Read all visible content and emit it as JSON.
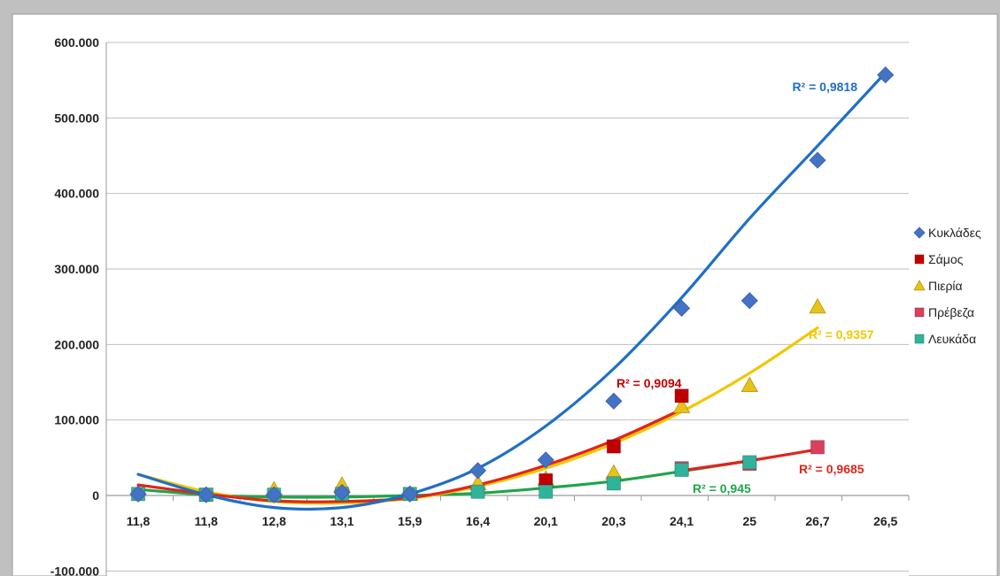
{
  "chart_data": {
    "type": "scatter",
    "categories": [
      "11,8",
      "11,8",
      "12,8",
      "13,1",
      "15,9",
      "16,4",
      "20,1",
      "20,3",
      "24,1",
      "25",
      "26,7",
      "26,5"
    ],
    "y_ticks": [
      "600.000",
      "500.000",
      "400.000",
      "300.000",
      "200.000",
      "100.000",
      "0",
      "-100.000"
    ],
    "ylim": [
      -100000,
      600000
    ],
    "grid": true,
    "legend_position": "right",
    "trendline": "polynomial",
    "series": [
      {
        "name": "Κυκλάδες",
        "marker": "diamond",
        "color": "#4472c4",
        "trend_color": "#1f6fc5",
        "values": [
          2000,
          1000,
          1000,
          4000,
          2000,
          33000,
          47000,
          125000,
          248000,
          258000,
          444000,
          557000
        ],
        "trend_y": [
          28000,
          1000,
          -16000,
          -16000,
          2000,
          36000,
          92000,
          168000,
          262000,
          367000,
          463000,
          560000
        ],
        "r2": "R² = 0,9818",
        "r2_color": "#1f6fc5"
      },
      {
        "name": "Σάμος",
        "marker": "square",
        "color": "#c00000",
        "trend_color": "#e0251b",
        "values": [
          null,
          1000,
          null,
          null,
          null,
          null,
          20000,
          65000,
          132000,
          null,
          null,
          null
        ],
        "trend_y": [
          14000,
          2000,
          -7000,
          -8000,
          -3000,
          14000,
          40000,
          73000,
          114000
        ],
        "trend_x_end": 8,
        "r2": "R² = 0,9094",
        "r2_color": "#c00000"
      },
      {
        "name": "Πιερία",
        "marker": "triangle",
        "color": "#e8c21b",
        "trend_color": "#f2c700",
        "values": [
          null,
          null,
          8000,
          14000,
          2000,
          16000,
          22000,
          30000,
          118000,
          146000,
          250000,
          null
        ],
        "trend_y": [
          28000,
          5000,
          -8000,
          -10000,
          -4000,
          12000,
          36000,
          69000,
          111000,
          162000,
          222000
        ],
        "trend_x_end": 10,
        "r2": "R² = 0,9357",
        "r2_color": "#f2c700"
      },
      {
        "name": "Πρέβεζα",
        "marker": "square",
        "color": "#d9405e",
        "trend_color": "#e0251b",
        "values": [
          null,
          null,
          null,
          null,
          null,
          null,
          null,
          null,
          36000,
          42000,
          64000,
          null
        ],
        "trend_y": [
          null,
          null,
          null,
          null,
          null,
          null,
          null,
          null,
          33000,
          46000,
          61000
        ],
        "trend_x_start": 8,
        "trend_x_end": 10,
        "r2": "R² = 0,9685",
        "r2_color": "#e0251b"
      },
      {
        "name": "Λευκάδα",
        "marker": "square",
        "color": "#2fb39a",
        "trend_color": "#1fa54a",
        "values": [
          2000,
          1000,
          1000,
          2000,
          2000,
          5000,
          5000,
          16000,
          34000,
          44000,
          null,
          null
        ],
        "trend_y": [
          8000,
          1000,
          -2000,
          -2000,
          0,
          3000,
          10000,
          19000,
          32000,
          46000
        ],
        "trend_x_end": 9,
        "r2": "R² = 0,945",
        "r2_color": "#1fa54a"
      }
    ]
  }
}
